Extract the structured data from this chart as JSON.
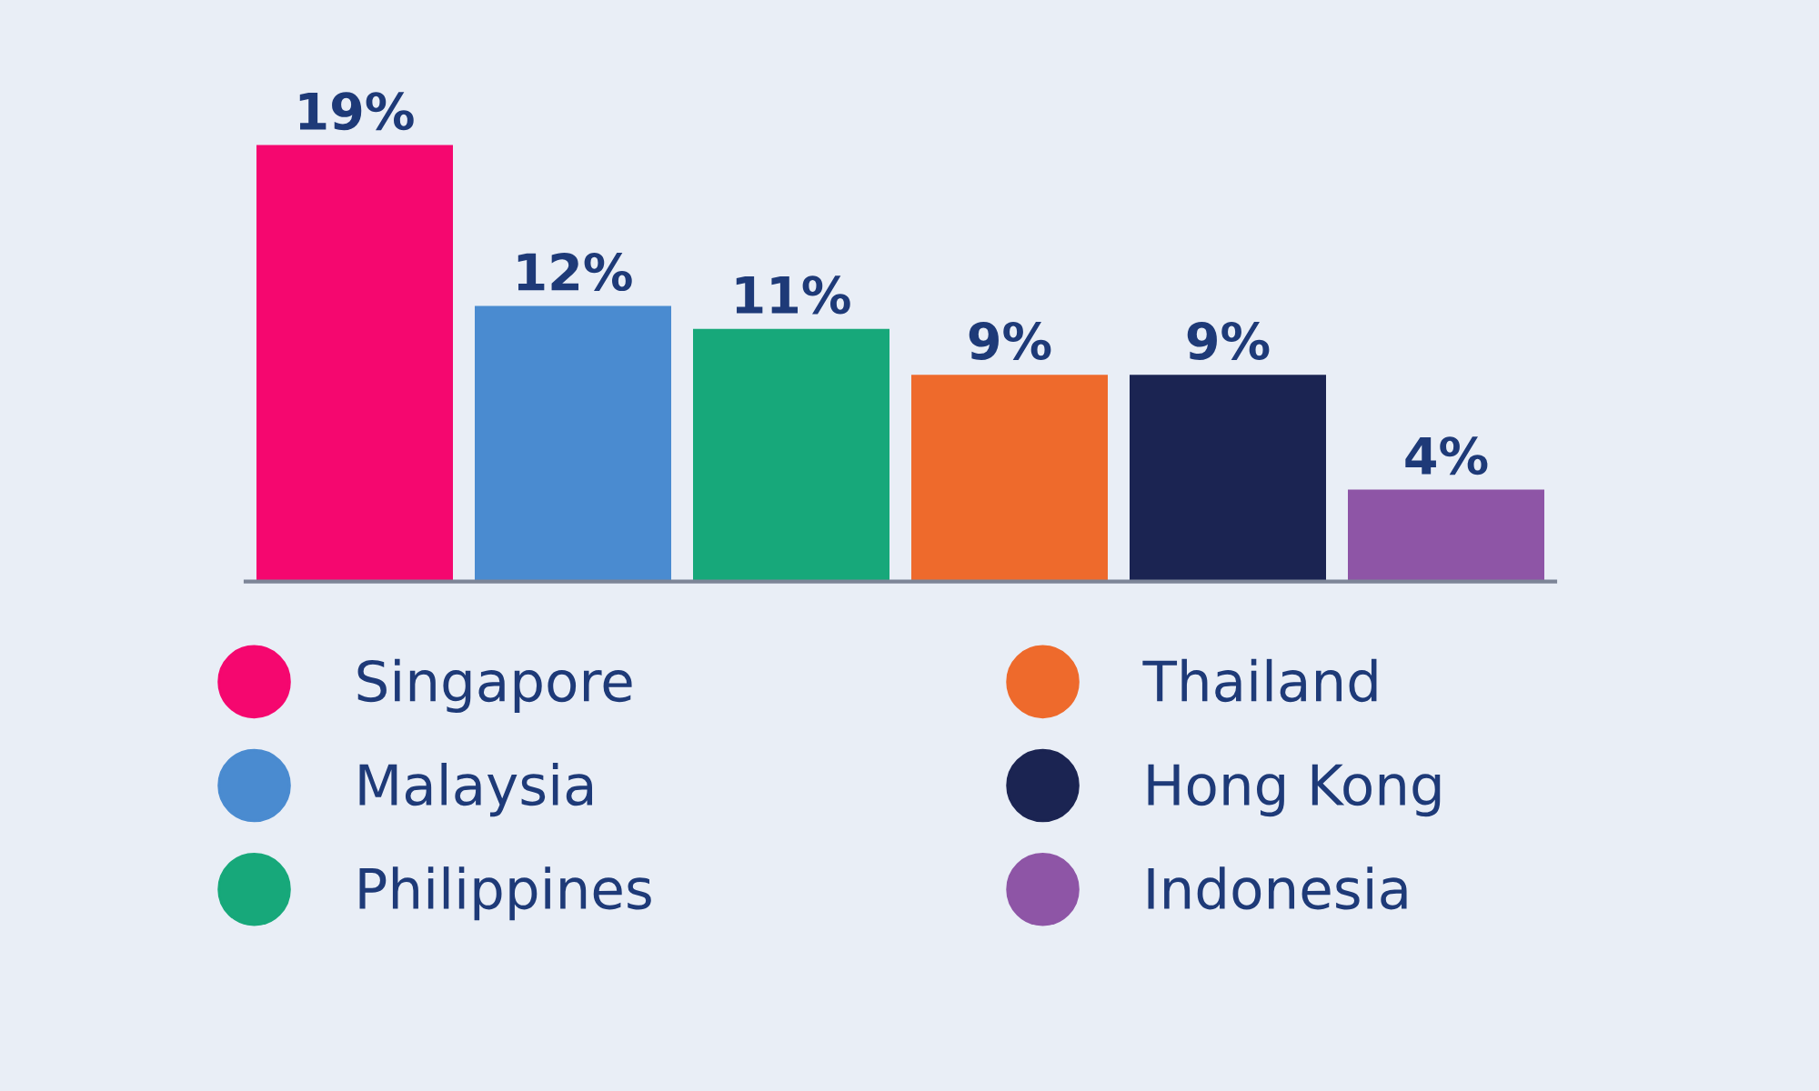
{
  "chart_data": {
    "type": "bar",
    "categories": [
      null,
      null,
      null,
      null,
      null,
      null
    ],
    "series": [
      {
        "name": "Singapore",
        "color": "#f5076f",
        "values": [
          19,
          null,
          null,
          null,
          null,
          null
        ],
        "value_labels": [
          "19%",
          null,
          null,
          null,
          null,
          null
        ]
      },
      {
        "name": "Malaysia",
        "color": "#4a8bd0",
        "values": [
          null,
          12,
          null,
          null,
          null,
          null
        ],
        "value_labels": [
          null,
          "12%",
          null,
          null,
          null,
          null
        ]
      },
      {
        "name": "Philippines",
        "color": "#17a87a",
        "values": [
          null,
          null,
          11,
          null,
          null,
          null
        ],
        "value_labels": [
          null,
          null,
          "11%",
          null,
          null,
          null
        ]
      },
      {
        "name": "Thailand",
        "color": "#ee6a2c",
        "values": [
          null,
          null,
          null,
          9,
          null,
          null
        ],
        "value_labels": [
          null,
          null,
          null,
          "9%",
          null,
          null
        ]
      },
      {
        "name": "Hong Kong",
        "color": "#1b2452",
        "values": [
          null,
          null,
          null,
          null,
          9,
          null
        ],
        "value_labels": [
          null,
          null,
          null,
          null,
          "9%",
          null
        ]
      },
      {
        "name": "Indonesia",
        "color": "#8e55a6",
        "values": [
          null,
          null,
          null,
          null,
          null,
          4
        ],
        "value_labels": [
          null,
          null,
          null,
          null,
          null,
          "4%"
        ]
      }
    ],
    "stacked": true,
    "legend": "bottom",
    "tick_labels": false,
    "grid": false
  }
}
